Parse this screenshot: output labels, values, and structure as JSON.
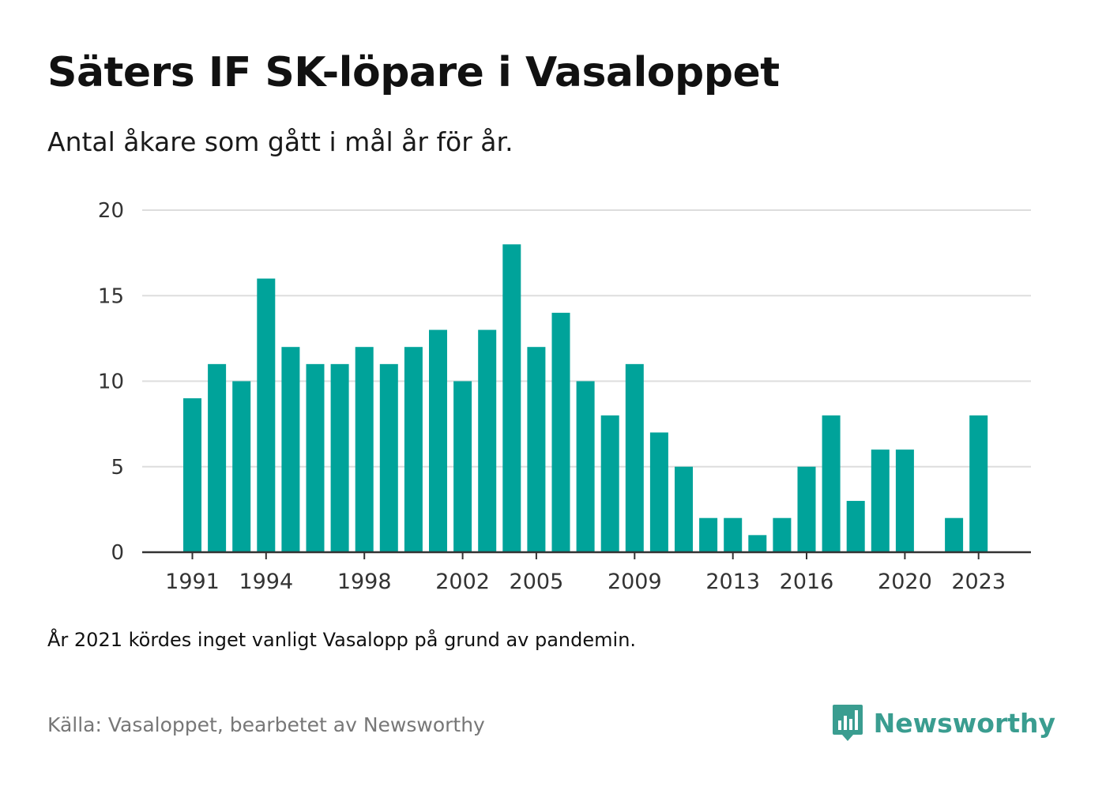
{
  "header": {
    "title": "Säters IF SK-löpare i Vasaloppet",
    "subtitle": "Antal åkare som gått i mål år för år."
  },
  "footer": {
    "note": "År 2021 kördes inget vanligt Vasalopp på grund av pandemin.",
    "source": "Källa: Vasaloppet, bearbetet av Newsworthy",
    "brand": "Newsworthy"
  },
  "colors": {
    "bar": "#00a39a",
    "grid": "#dddddd",
    "axis": "#333333",
    "brand": "#3a9d90"
  },
  "icons": {
    "brand_logo": "newsworthy-logo-icon"
  },
  "chart_data": {
    "type": "bar",
    "title": "Säters IF SK-löpare i Vasaloppet",
    "subtitle": "Antal åkare som gått i mål år för år.",
    "xlabel": "",
    "ylabel": "",
    "ylim": [
      0,
      20
    ],
    "yticks": [
      0,
      5,
      10,
      15,
      20
    ],
    "xtick_labels": [
      "1991",
      "1994",
      "1998",
      "2002",
      "2005",
      "2009",
      "2013",
      "2016",
      "2020",
      "2023"
    ],
    "grid": true,
    "categories": [
      1991,
      1992,
      1993,
      1994,
      1995,
      1996,
      1997,
      1998,
      1999,
      2000,
      2001,
      2002,
      2003,
      2004,
      2005,
      2006,
      2007,
      2008,
      2009,
      2010,
      2011,
      2012,
      2013,
      2014,
      2015,
      2016,
      2017,
      2018,
      2019,
      2020,
      2021,
      2022,
      2023
    ],
    "values": [
      9,
      11,
      10,
      16,
      12,
      11,
      11,
      12,
      11,
      12,
      13,
      10,
      13,
      18,
      12,
      14,
      10,
      8,
      11,
      7,
      5,
      2,
      2,
      1,
      2,
      5,
      8,
      3,
      6,
      6,
      0,
      2,
      8
    ]
  }
}
